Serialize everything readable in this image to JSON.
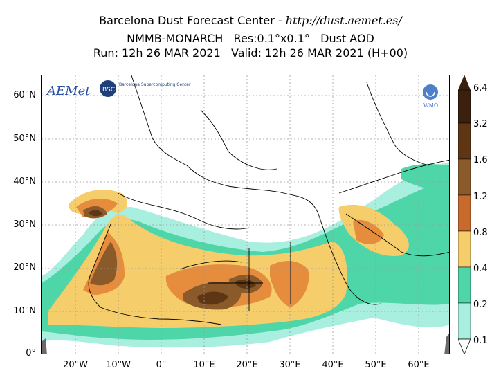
{
  "title": {
    "line1_prefix": "Barcelona Dust Forecast Center - ",
    "line1_url": "http://dust.aemet.es/",
    "line2": "NMMB-MONARCH   Res:0.1°x0.1°   Dust AOD",
    "line3": "Run: 12h 26 MAR 2021   Valid: 12h 26 MAR 2021 (H+00)"
  },
  "axes": {
    "lat_labels": [
      "60°N",
      "50°N",
      "40°N",
      "30°N",
      "20°N",
      "10°N",
      "0°"
    ],
    "lon_labels": [
      "20°W",
      "10°W",
      "0°",
      "10°E",
      "20°E",
      "30°E",
      "40°E",
      "50°E",
      "60°E"
    ],
    "lon_min": -28,
    "lon_max": 67,
    "lat_min": 0,
    "lat_max": 65
  },
  "colorbar": {
    "labels": [
      "6.4",
      "3.2",
      "1.6",
      "1.2",
      "0.8",
      "0.4",
      "0.2",
      "0.1"
    ],
    "colors": [
      "#3b200d",
      "#5e3613",
      "#8b5a2b",
      "#c86a2c",
      "#e58c3d",
      "#f5cd6a",
      "#4fd6a8",
      "#a9efe0"
    ]
  },
  "logos": {
    "aemet": "AEMet",
    "bsc": "BSC",
    "bsc_text": "Barcelona Supercomputing Center",
    "wmo": "WMO"
  }
}
